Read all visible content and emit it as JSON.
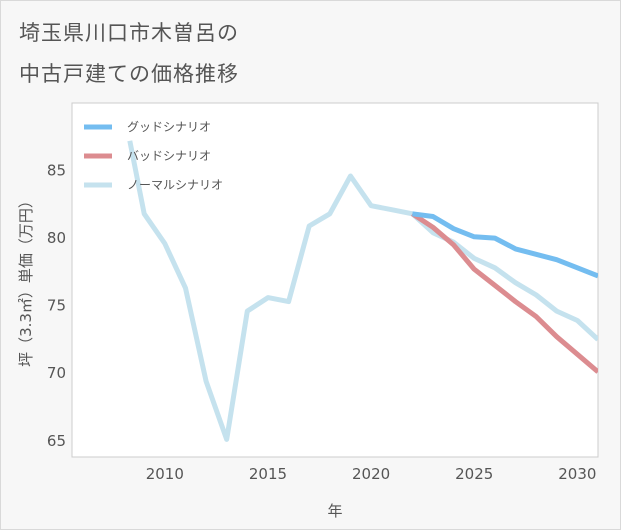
{
  "title": {
    "line1": "埼玉県川口市木曽呂の",
    "line2": "中古戸建ての価格推移"
  },
  "chart_data": {
    "type": "line",
    "xlabel": "年",
    "ylabel": "坪（3.3㎡）単価（万円）",
    "xlim": [
      2005.5,
      2031.0
    ],
    "ylim": [
      63.8,
      90.0
    ],
    "xticks": [
      2010,
      2015,
      2020,
      2025,
      2030
    ],
    "yticks": [
      65,
      70,
      75,
      80,
      85
    ],
    "legend_position": "top-left",
    "series": [
      {
        "name": "グッドシナリオ",
        "color": "#74bdf0",
        "x": [
          2022,
          2023,
          2024,
          2025,
          2026,
          2027,
          2028,
          2029,
          2030,
          2031
        ],
        "values": [
          81.8,
          81.6,
          80.7,
          80.1,
          80.0,
          79.2,
          78.8,
          78.4,
          77.8,
          77.2
        ]
      },
      {
        "name": "バッドシナリオ",
        "color": "#dc8c90",
        "x": [
          2022,
          2023,
          2024,
          2025,
          2026,
          2027,
          2028,
          2029,
          2030,
          2031
        ],
        "values": [
          81.8,
          80.8,
          79.5,
          77.7,
          76.5,
          75.3,
          74.2,
          72.7,
          71.4,
          70.1
        ]
      },
      {
        "name": "ノーマルシナリオ",
        "color": "#c5e2ee",
        "x": [
          2008.3,
          2009,
          2010,
          2011,
          2012,
          2013,
          2014,
          2015,
          2016,
          2017,
          2018,
          2019,
          2020,
          2021,
          2022,
          2023,
          2024,
          2025,
          2026,
          2027,
          2028,
          2029,
          2030,
          2031
        ],
        "values": [
          87.2,
          81.8,
          79.6,
          76.3,
          69.4,
          65.1,
          74.6,
          75.6,
          75.3,
          80.9,
          81.8,
          84.6,
          82.4,
          82.1,
          81.8,
          80.4,
          79.7,
          78.5,
          77.8,
          76.7,
          75.8,
          74.6,
          73.9,
          72.5
        ]
      }
    ]
  }
}
